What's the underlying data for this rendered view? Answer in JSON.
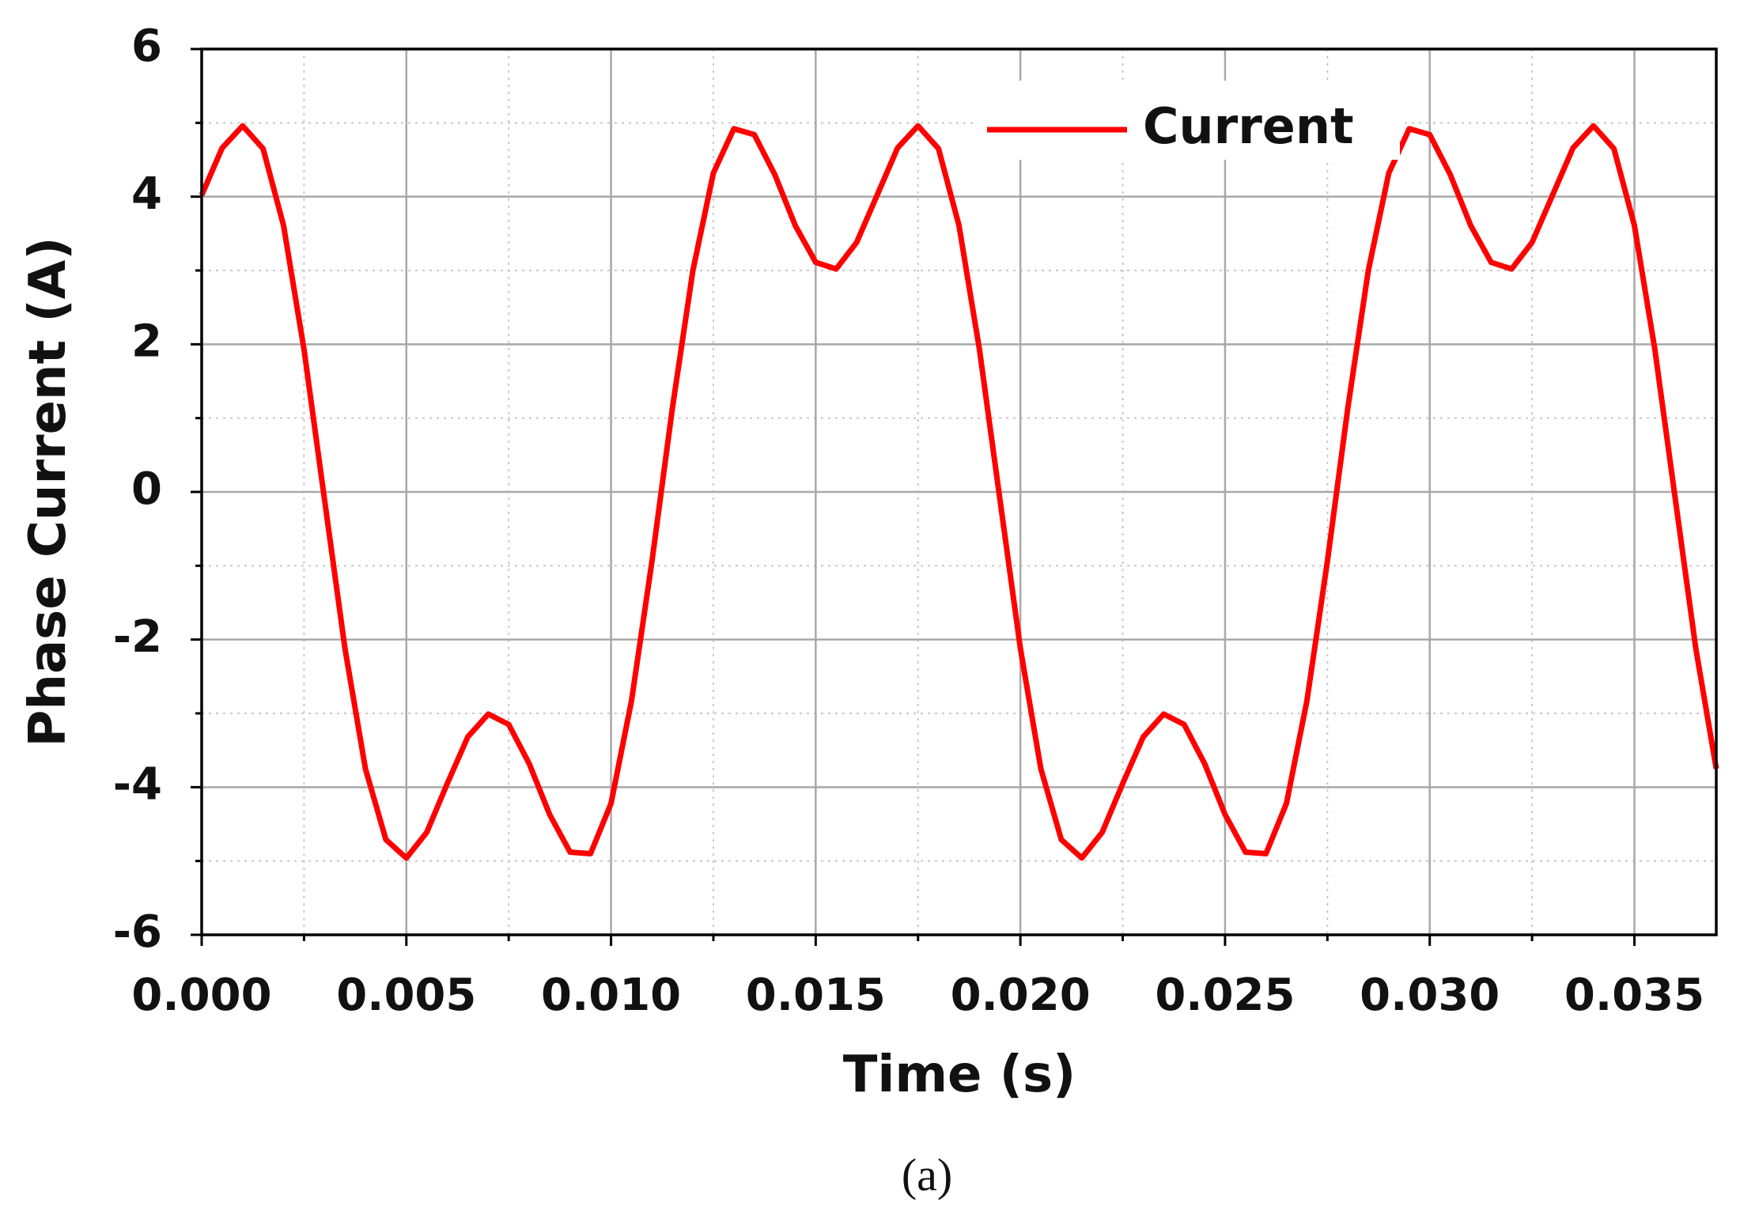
{
  "chart_data": {
    "type": "line",
    "xlabel": "Time (s)",
    "ylabel": "Phase Current (A)",
    "caption": "(a)",
    "xlim": [
      0,
      0.037
    ],
    "ylim": [
      -6,
      6
    ],
    "xticks": [
      {
        "value": 0,
        "label": "0.000"
      },
      {
        "value": 0.005,
        "label": "0.005"
      },
      {
        "value": 0.01,
        "label": "0.010"
      },
      {
        "value": 0.015,
        "label": "0.015"
      },
      {
        "value": 0.02,
        "label": "0.020"
      },
      {
        "value": 0.025,
        "label": "0.025"
      },
      {
        "value": 0.03,
        "label": "0.030"
      },
      {
        "value": 0.035,
        "label": "0.035"
      }
    ],
    "yticks": [
      -6,
      -4,
      -2,
      0,
      2,
      4,
      6
    ],
    "xminorticks": [
      0.0025,
      0.0075,
      0.0125,
      0.0175,
      0.0225,
      0.0275,
      0.0325
    ],
    "yminorticks": [
      -5,
      -3,
      -1,
      1,
      3,
      5
    ],
    "grid": true,
    "minor_grid": true,
    "legend": "top-right",
    "x": [
      0,
      0.0005,
      0.001,
      0.0015,
      0.002,
      0.0025,
      0.003,
      0.0035,
      0.004,
      0.0045,
      0.005,
      0.0055,
      0.006,
      0.0065,
      0.007,
      0.0075,
      0.008,
      0.0085,
      0.009,
      0.0095,
      0.01,
      0.0105,
      0.011,
      0.0115,
      0.012,
      0.0125,
      0.013,
      0.0135,
      0.014,
      0.0145,
      0.015,
      0.0155,
      0.016,
      0.0165,
      0.017,
      0.0175,
      0.018,
      0.0185,
      0.019,
      0.0195,
      0.02,
      0.0205,
      0.021,
      0.0215,
      0.022,
      0.0225,
      0.023,
      0.0235,
      0.024,
      0.0245,
      0.025,
      0.0255,
      0.026,
      0.0265,
      0.027,
      0.0275,
      0.028,
      0.0285,
      0.029,
      0.0295,
      0.03,
      0.0305,
      0.031,
      0.0315,
      0.032,
      0.0325,
      0.033,
      0.0335,
      0.034,
      0.0345,
      0.035,
      0.0355,
      0.036,
      0.0365,
      0.037
    ],
    "series": [
      {
        "name": "Current",
        "color": "#ff0000",
        "values": [
          4.02,
          4.66,
          4.96,
          4.65,
          3.61,
          1.93,
          -0.1,
          -2.12,
          -3.75,
          -4.71,
          -4.96,
          -4.61,
          -3.95,
          -3.32,
          -3.01,
          -3.15,
          -3.68,
          -4.37,
          -4.88,
          -4.9,
          -4.22,
          -2.83,
          -0.94,
          1.14,
          3.0,
          4.32,
          4.92,
          4.84,
          4.3,
          3.61,
          3.11,
          3.02,
          3.38,
          4.02,
          4.66,
          4.96,
          4.65,
          3.61,
          1.93,
          -0.1,
          -2.12,
          -3.75,
          -4.71,
          -4.96,
          -4.61,
          -3.95,
          -3.32,
          -3.01,
          -3.15,
          -3.68,
          -4.37,
          -4.88,
          -4.9,
          -4.22,
          -2.83,
          -0.94,
          1.14,
          3.0,
          4.32,
          4.92,
          4.84,
          4.3,
          3.61,
          3.11,
          3.02,
          3.38,
          4.02,
          4.66,
          4.96,
          4.65,
          3.61,
          1.93,
          -0.1,
          -2.12,
          -3.75
        ]
      }
    ]
  }
}
